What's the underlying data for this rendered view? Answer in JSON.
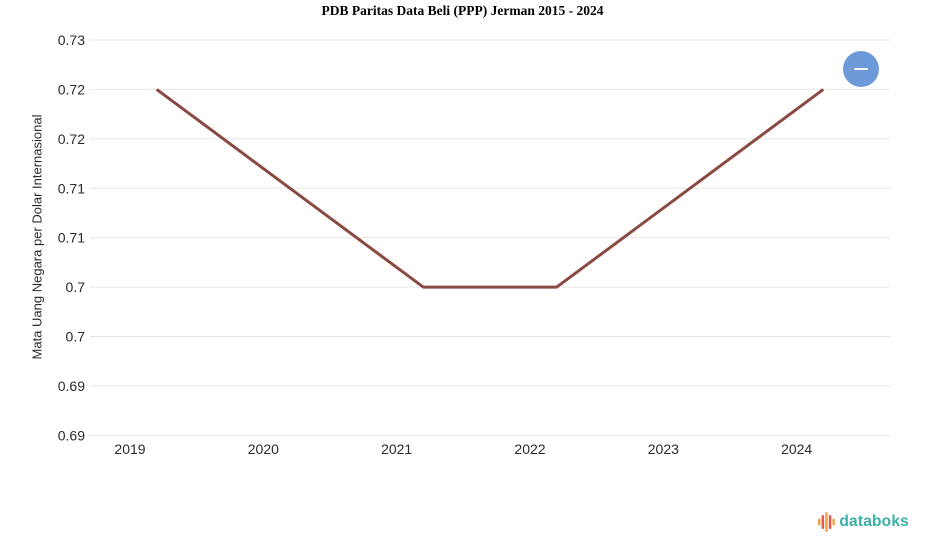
{
  "chart_data": {
    "type": "line",
    "title": "PDB Paritas Data Beli (PPP) Jerman 2015 - 2024",
    "categories": [
      "2019",
      "2020",
      "2021",
      "2022",
      "2023",
      "2024"
    ],
    "values": [
      0.725,
      0.715,
      0.705,
      0.705,
      0.715,
      0.725
    ],
    "values_as_labeled": [
      0.72,
      0.71,
      0.7,
      0.7,
      0.71,
      0.72
    ],
    "xlabel": "",
    "ylabel": "Mata Uang Negara per Dolar Internasional",
    "ylim": [
      0.69,
      0.73
    ],
    "ytick_step": 0.005,
    "ytick_labels_top_to_bottom": [
      "0.73",
      "0.72",
      "0.72",
      "0.71",
      "0.71",
      "0.7",
      "0.7",
      "0.69",
      "0.69"
    ],
    "grid": true,
    "legend": false,
    "line_color": "#8A4A42",
    "gridline_color": "#E6E6E6",
    "label_color": "#2B2B2B"
  },
  "controls": {
    "zoom_out_icon": "minus",
    "zoom_out_color": "#6C9AD9"
  },
  "footer": {
    "logo_text": "databoks",
    "logo_text_color": "#3AB0A7",
    "logo_bar_colors": [
      "#F6A14B",
      "#E2574C",
      "#F6A14B",
      "#E2574C",
      "#F6A14B"
    ]
  }
}
